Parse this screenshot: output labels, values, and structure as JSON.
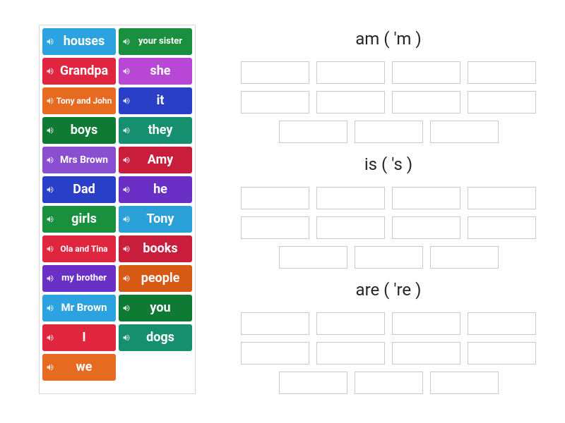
{
  "colors": {
    "blue": "#2ca3e0",
    "green": "#1a8f3d",
    "red": "#e0263f",
    "magenta": "#b847d6",
    "orange": "#e66a1f",
    "indigo": "#2a3fc7",
    "purple": "#6a2fc4",
    "teal": "#158f6e",
    "crimson": "#c81e3c",
    "violet": "#8a4fd1",
    "cyan": "#2aa0d6",
    "dorange": "#d65a14",
    "dgreen": "#0f7a34"
  },
  "tiles": [
    {
      "label": "houses",
      "color": "blue",
      "fs": 18
    },
    {
      "label": "your sister",
      "color": "green",
      "fs": 13
    },
    {
      "label": "Grandpa",
      "color": "red",
      "fs": 18
    },
    {
      "label": "she",
      "color": "magenta",
      "fs": 18
    },
    {
      "label": "Tony and John",
      "color": "orange",
      "fs": 12
    },
    {
      "label": "it",
      "color": "indigo",
      "fs": 18
    },
    {
      "label": "boys",
      "color": "dgreen",
      "fs": 18
    },
    {
      "label": "they",
      "color": "teal",
      "fs": 18
    },
    {
      "label": "Mrs Brown",
      "color": "violet",
      "fs": 14
    },
    {
      "label": "Amy",
      "color": "crimson",
      "fs": 18
    },
    {
      "label": "Dad",
      "color": "indigo",
      "fs": 18
    },
    {
      "label": "he",
      "color": "purple",
      "fs": 18
    },
    {
      "label": "girls",
      "color": "green",
      "fs": 18
    },
    {
      "label": "Tony",
      "color": "cyan",
      "fs": 18
    },
    {
      "label": "Ola and Tina",
      "color": "red",
      "fs": 12
    },
    {
      "label": "books",
      "color": "crimson",
      "fs": 18
    },
    {
      "label": "my brother",
      "color": "purple",
      "fs": 13
    },
    {
      "label": "people",
      "color": "dorange",
      "fs": 18
    },
    {
      "label": "Mr Brown",
      "color": "blue",
      "fs": 15
    },
    {
      "label": "you",
      "color": "dgreen",
      "fs": 18
    },
    {
      "label": "I",
      "color": "red",
      "fs": 18
    },
    {
      "label": "dogs",
      "color": "teal",
      "fs": 18
    },
    {
      "label": "we",
      "color": "orange",
      "fs": 18
    }
  ],
  "groups": [
    {
      "title": "am ( 'm )",
      "slots": 11
    },
    {
      "title": "is ( 's )",
      "slots": 11
    },
    {
      "title": "are ( 're )",
      "slots": 11
    }
  ]
}
